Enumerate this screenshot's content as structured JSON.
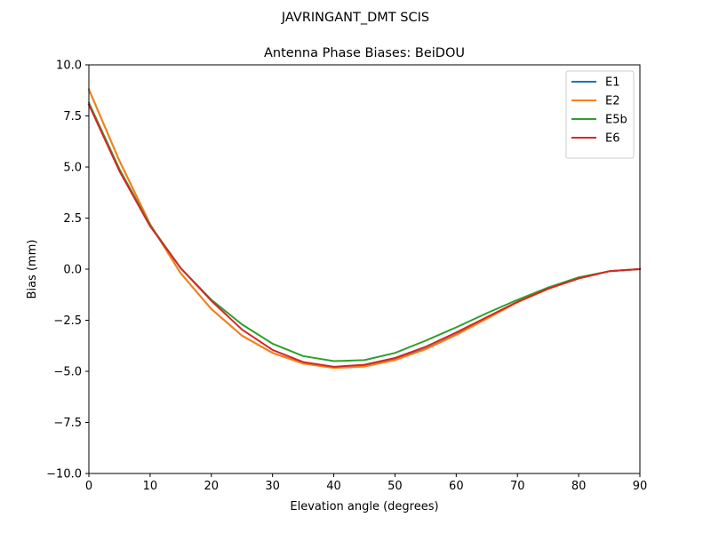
{
  "figure": {
    "suptitle": "JAVRINGANT_DMT  SCIS"
  },
  "chart_data": {
    "type": "line",
    "title": "Antenna Phase Biases: BeiDOU",
    "xlabel": "Elevation angle (degrees)",
    "ylabel": "Bias (mm)",
    "xlim": [
      0,
      90
    ],
    "ylim": [
      -10,
      10
    ],
    "x_ticks": [
      0,
      10,
      20,
      30,
      40,
      50,
      60,
      70,
      80,
      90
    ],
    "x_tick_labels": [
      "0",
      "10",
      "20",
      "30",
      "40",
      "50",
      "60",
      "70",
      "80",
      "90"
    ],
    "y_ticks": [
      -10,
      -7.5,
      -5,
      -2.5,
      0,
      2.5,
      5,
      7.5,
      10
    ],
    "y_tick_labels": [
      "−10.0",
      "−7.5",
      "−5.0",
      "−2.5",
      "0.0",
      "2.5",
      "5.0",
      "7.5",
      "10.0"
    ],
    "grid": false,
    "legend_position": "top-right",
    "x": [
      0,
      5,
      10,
      15,
      20,
      25,
      30,
      35,
      40,
      45,
      50,
      55,
      60,
      65,
      70,
      75,
      80,
      85,
      90
    ],
    "series": [
      {
        "name": "E1",
        "color": "#1f77b4",
        "values": [
          8.8,
          5.3,
          2.2,
          -0.2,
          -1.95,
          -3.25,
          -4.1,
          -4.6,
          -4.82,
          -4.75,
          -4.42,
          -3.9,
          -3.2,
          -2.4,
          -1.6,
          -0.95,
          -0.45,
          -0.1,
          0.0
        ]
      },
      {
        "name": "E2",
        "color": "#ff7f0e",
        "values": [
          8.8,
          5.3,
          2.2,
          -0.2,
          -1.95,
          -3.25,
          -4.1,
          -4.62,
          -4.84,
          -4.77,
          -4.45,
          -3.92,
          -3.22,
          -2.42,
          -1.62,
          -0.97,
          -0.45,
          -0.1,
          0.0
        ]
      },
      {
        "name": "E5b",
        "color": "#2ca02c",
        "values": [
          8.15,
          4.9,
          2.15,
          0.05,
          -1.5,
          -2.7,
          -3.65,
          -4.25,
          -4.5,
          -4.45,
          -4.1,
          -3.5,
          -2.85,
          -2.15,
          -1.5,
          -0.9,
          -0.4,
          -0.1,
          0.0
        ]
      },
      {
        "name": "E6",
        "color": "#d62728",
        "values": [
          8.05,
          4.8,
          2.1,
          0.05,
          -1.55,
          -2.95,
          -3.95,
          -4.55,
          -4.78,
          -4.68,
          -4.35,
          -3.8,
          -3.1,
          -2.35,
          -1.6,
          -0.95,
          -0.45,
          -0.1,
          0.0
        ]
      }
    ]
  }
}
